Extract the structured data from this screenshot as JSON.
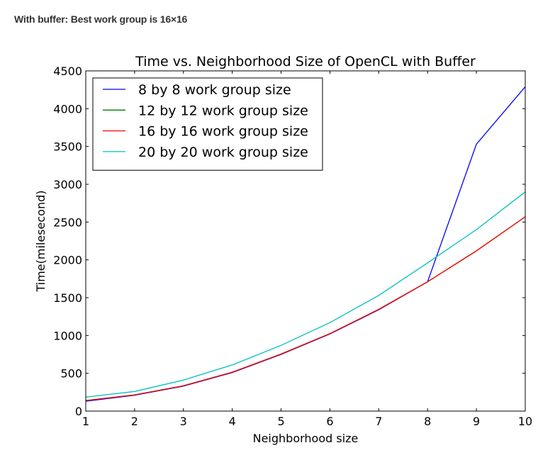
{
  "page": {
    "heading": "With buffer: Best work group is 16×16"
  },
  "chart_data": {
    "type": "line",
    "title": "Time vs. Neighborhood Size of OpenCL with Buffer",
    "xlabel": "Neighborhood size",
    "ylabel": "Time(milesecond)",
    "xlim": [
      1,
      10
    ],
    "ylim": [
      0,
      4500
    ],
    "x_ticks": [
      1,
      2,
      3,
      4,
      5,
      6,
      7,
      8,
      9,
      10
    ],
    "y_ticks": [
      0,
      500,
      1000,
      1500,
      2000,
      2500,
      3000,
      3500,
      4000,
      4500
    ],
    "grid": false,
    "legend_position": "top-left",
    "x": [
      1,
      2,
      3,
      4,
      5,
      6,
      7,
      8,
      9,
      10
    ],
    "series": [
      {
        "name": "8 by 8 work group size",
        "color": "#0000ff",
        "values": [
          130,
          210,
          330,
          510,
          750,
          1020,
          1340,
          1710,
          3530,
          4290
        ]
      },
      {
        "name": "12 by 12 work group size",
        "color": "#008000",
        "values": [
          140,
          215,
          335,
          515,
          755,
          1025,
          1345,
          1710,
          2120,
          2570
        ]
      },
      {
        "name": "16 by 16 work group size",
        "color": "#ff0000",
        "values": [
          140,
          215,
          335,
          515,
          755,
          1025,
          1345,
          1710,
          2120,
          2570
        ]
      },
      {
        "name": "20 by 20 work group size",
        "color": "#00bfbf",
        "values": [
          185,
          260,
          410,
          610,
          870,
          1170,
          1530,
          1960,
          2400,
          2900
        ]
      }
    ]
  }
}
